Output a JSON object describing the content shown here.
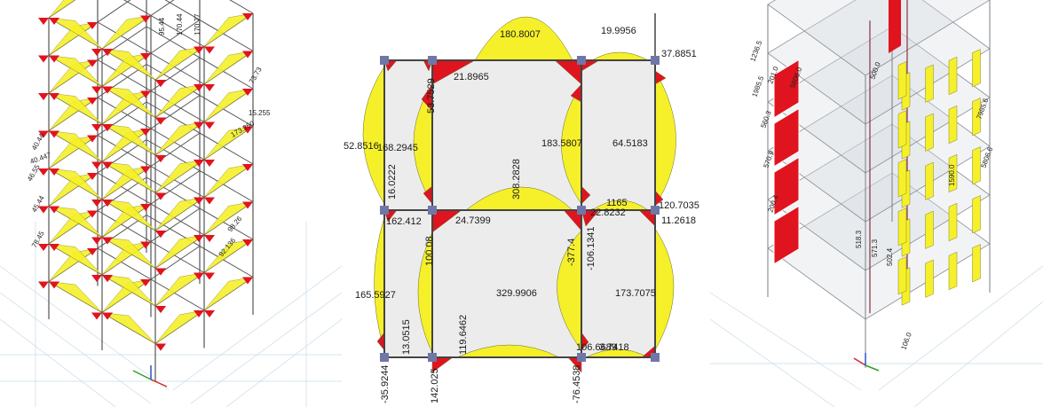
{
  "panels": [
    {
      "id": "left-3d-frame",
      "labels": [
        "40.44",
        "46.55",
        "45.44",
        "78.45",
        "15.255",
        "173.250",
        "98.26",
        "73.73",
        "92.136",
        "40.447",
        "95.44",
        "170.44",
        "170.77"
      ]
    },
    {
      "id": "middle-2d-frame",
      "labels": [
        {
          "id": "l01",
          "text": "180.8007"
        },
        {
          "id": "l02",
          "text": "19.9956"
        },
        {
          "id": "l03",
          "text": "37.8851"
        },
        {
          "id": "l04",
          "text": "21.8965"
        },
        {
          "id": "l05",
          "text": "53.7529"
        },
        {
          "id": "l06",
          "text": "52.8516"
        },
        {
          "id": "l07",
          "text": "168.2945"
        },
        {
          "id": "l08",
          "text": "183.5807"
        },
        {
          "id": "l09",
          "text": "64.5183"
        },
        {
          "id": "l10",
          "text": "16.0222"
        },
        {
          "id": "l11",
          "text": "308.2828"
        },
        {
          "id": "l12",
          "text": "22.8232"
        },
        {
          "id": "l13",
          "text": "1165"
        },
        {
          "id": "l14",
          "text": "120.7035"
        },
        {
          "id": "l15",
          "text": "162.412"
        },
        {
          "id": "l16",
          "text": "24.7399"
        },
        {
          "id": "l17",
          "text": "11.2618"
        },
        {
          "id": "l18",
          "text": "100.08"
        },
        {
          "id": "l19",
          "text": "-377.4"
        },
        {
          "id": "l20",
          "text": "-106.1341"
        },
        {
          "id": "l21",
          "text": "165.5927"
        },
        {
          "id": "l22",
          "text": "329.9906"
        },
        {
          "id": "l23",
          "text": "173.7075"
        },
        {
          "id": "l24",
          "text": "13.0515"
        },
        {
          "id": "l25",
          "text": "119.6462"
        },
        {
          "id": "l26",
          "text": "3.7418"
        },
        {
          "id": "l27",
          "text": "106.6689"
        },
        {
          "id": "l28",
          "text": "-35.9244"
        },
        {
          "id": "l29",
          "text": "142.025"
        },
        {
          "id": "l30",
          "text": "-76.4538"
        }
      ]
    },
    {
      "id": "right-3d-walls",
      "labels": [
        "1236.5",
        "1985.5",
        "201.0",
        "5806.0",
        "560.3",
        "570.9",
        "200.4",
        "500.0",
        "518.3",
        "571.3",
        "502.4",
        "7985.6",
        "5806.6",
        "1590.0",
        "106.0"
      ]
    }
  ],
  "colors": {
    "positive": "#f5f02a",
    "negative": "#e0141e",
    "member": "#444444",
    "node": "#6f77a8",
    "panel": "#ececec"
  }
}
